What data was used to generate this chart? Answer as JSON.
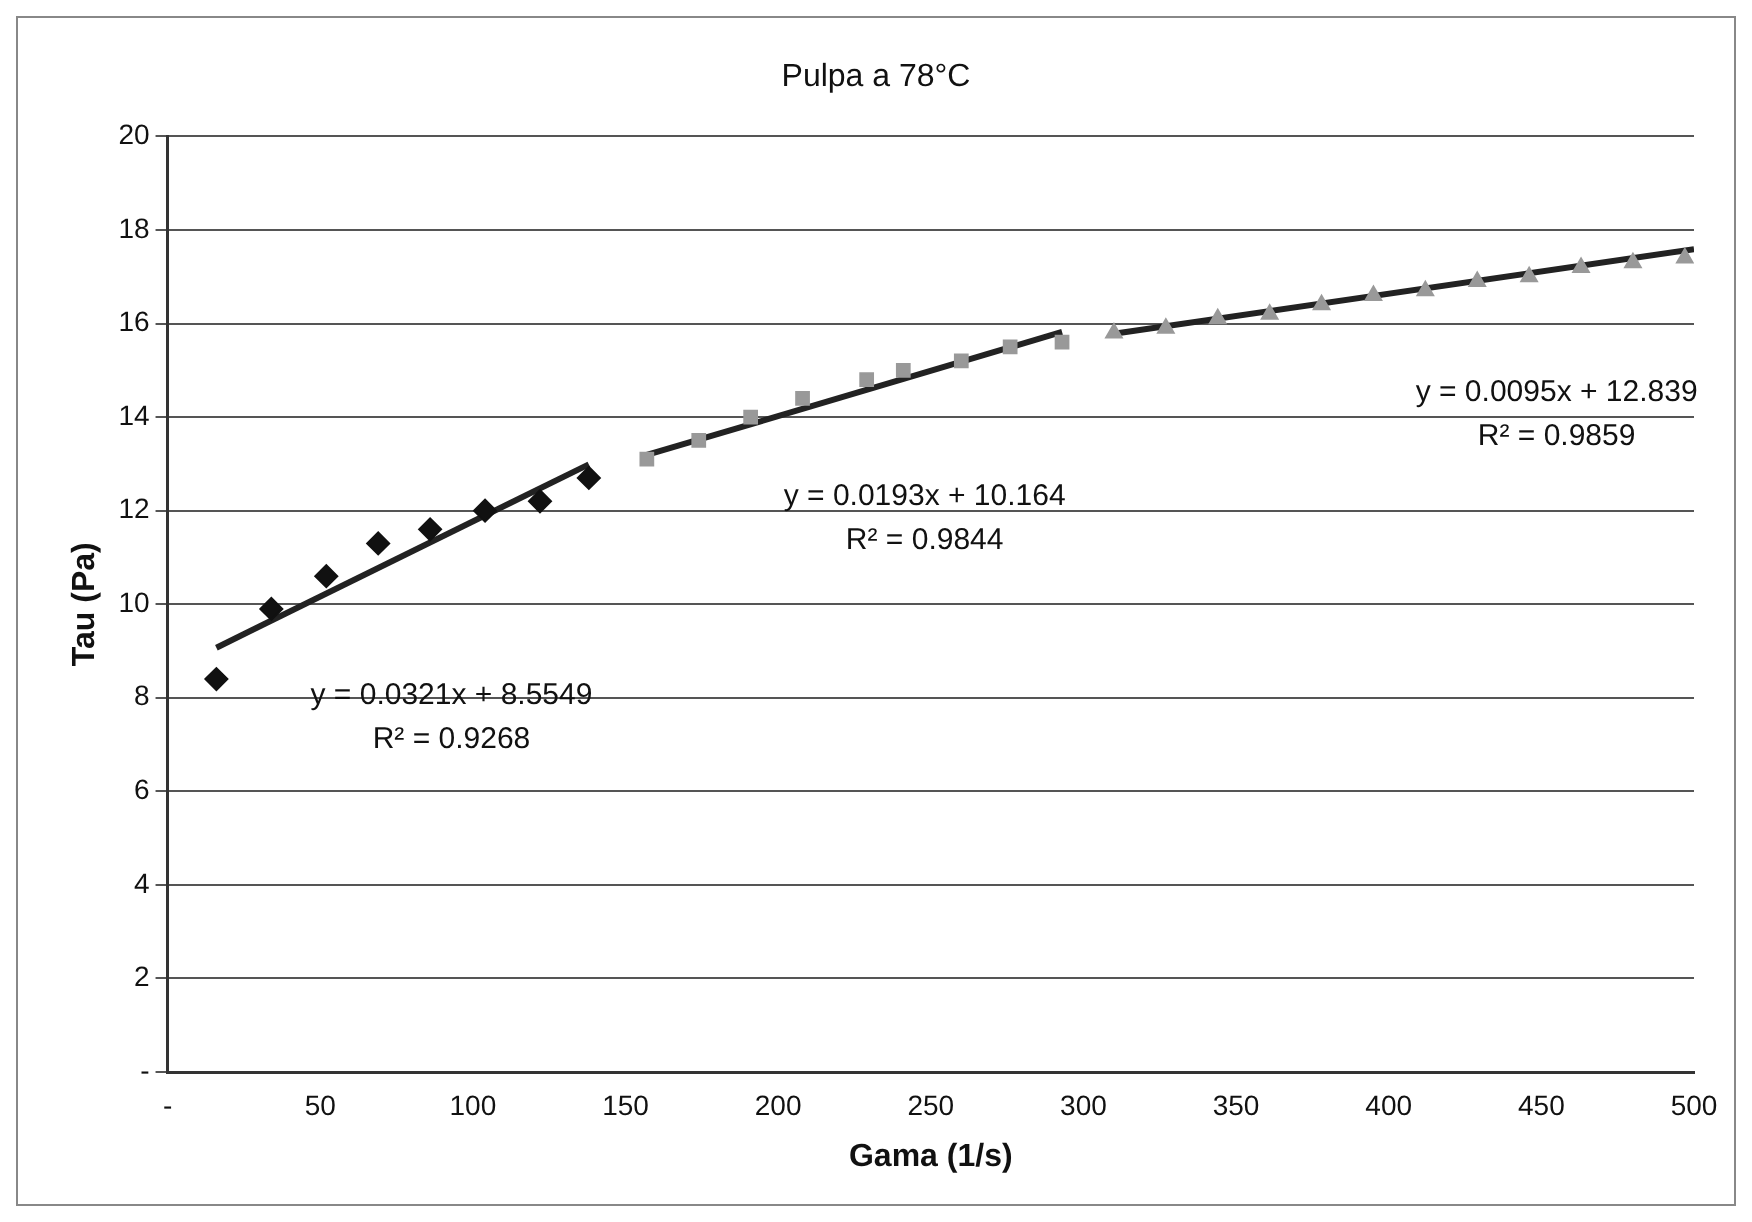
{
  "chart_data": {
    "type": "scatter",
    "title": "Pulpa a 78°C",
    "xlabel": "Gama (1/s)",
    "ylabel": "Tau (Pa)",
    "xlim": [
      0,
      500
    ],
    "xticks": [
      {
        "value": 0,
        "label": "-"
      },
      50,
      100,
      150,
      200,
      250,
      300,
      350,
      400,
      450,
      500
    ],
    "ylim": [
      0,
      20
    ],
    "yticks": [
      {
        "value": 0,
        "label": "-"
      },
      2,
      4,
      6,
      8,
      10,
      12,
      14,
      16,
      18,
      20
    ],
    "grid": "y",
    "legend": false,
    "series": [
      {
        "type": "scatter",
        "marker": "diamond",
        "color": "#111111",
        "x": [
          16,
          34,
          52,
          69,
          86,
          104,
          122,
          138
        ],
        "values": [
          8.4,
          9.9,
          10.6,
          11.3,
          11.6,
          12.0,
          12.2,
          12.7
        ]
      },
      {
        "type": "scatter",
        "marker": "square",
        "color": "#999999",
        "x": [
          157,
          174,
          191,
          208,
          229,
          241,
          260,
          276,
          293
        ],
        "values": [
          13.1,
          13.5,
          14.0,
          14.4,
          14.8,
          15.0,
          15.2,
          15.5,
          15.6
        ]
      },
      {
        "type": "scatter",
        "marker": "triangle",
        "color": "#999999",
        "x": [
          310,
          327,
          344,
          361,
          378,
          395,
          412,
          429,
          446,
          463,
          480,
          497
        ],
        "values": [
          15.8,
          15.9,
          16.1,
          16.2,
          16.4,
          16.6,
          16.7,
          16.9,
          17.0,
          17.2,
          17.3,
          17.4
        ]
      },
      {
        "type": "line",
        "marker": "none",
        "color": "#222222",
        "x": [
          16,
          138
        ],
        "values": [
          9.07,
          12.99
        ]
      },
      {
        "type": "line",
        "marker": "none",
        "color": "#222222",
        "x": [
          157,
          293
        ],
        "values": [
          13.19,
          15.82
        ]
      },
      {
        "type": "line",
        "marker": "none",
        "color": "#222222",
        "x": [
          310,
          500
        ],
        "values": [
          15.78,
          17.59
        ]
      }
    ],
    "annotations": [
      "y = 0.0321x + 8.5549",
      "R² = 0.9268",
      "y = 0.0193x + 10.164",
      "R² = 0.9844",
      "y = 0.0095x + 12.839",
      "R² = 0.9859"
    ]
  }
}
